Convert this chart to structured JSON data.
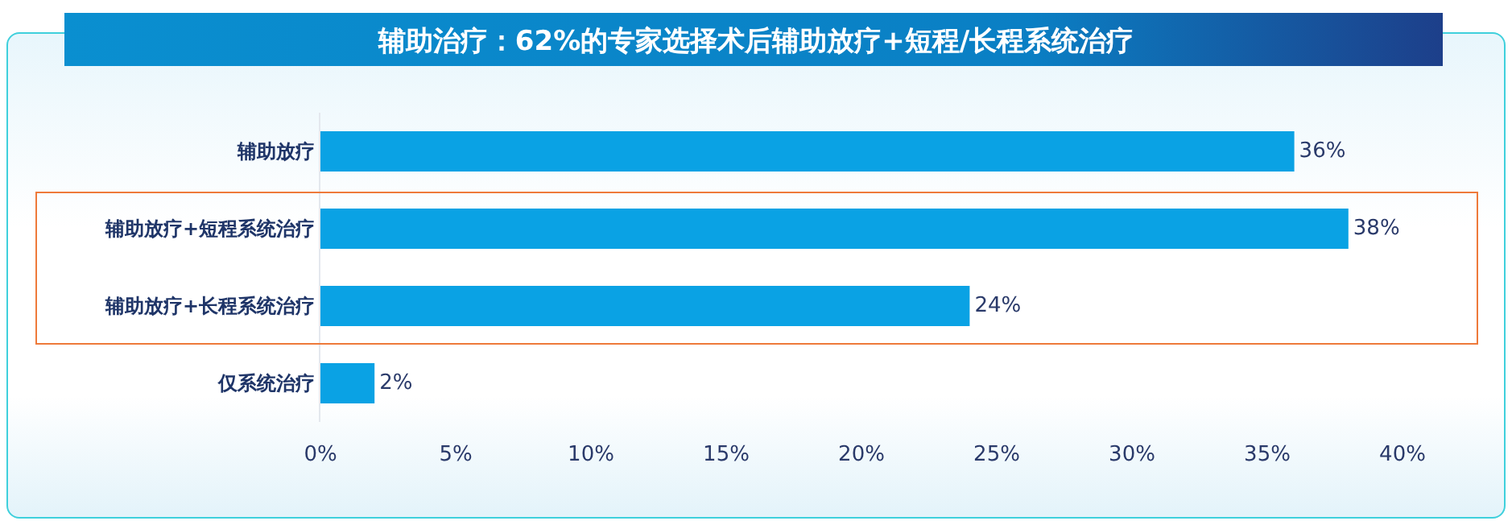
{
  "chart_data": {
    "type": "bar",
    "orientation": "horizontal",
    "title": "辅助治疗：62%的专家选择术后辅助放疗+短程/长程系统治疗",
    "categories": [
      "辅助放疗",
      "辅助放疗+短程系统治疗",
      "辅助放疗+长程系统治疗",
      "仅系统治疗"
    ],
    "values": [
      36,
      38,
      24,
      2
    ],
    "color": "#0aa2e4",
    "value_labels": [
      "36%",
      "38%",
      "24%",
      "2%"
    ],
    "xlim": [
      0,
      40
    ],
    "xticks": [
      {
        "value": 0,
        "label": "0%"
      },
      {
        "value": 5,
        "label": "5%"
      },
      {
        "value": 10,
        "label": "10%"
      },
      {
        "value": 15,
        "label": "15%"
      },
      {
        "value": 20,
        "label": "20%"
      },
      {
        "value": 25,
        "label": "25%"
      },
      {
        "value": 30,
        "label": "30%"
      },
      {
        "value": 35,
        "label": "35%"
      },
      {
        "value": 40,
        "label": "40%"
      }
    ],
    "grid": false
  }
}
